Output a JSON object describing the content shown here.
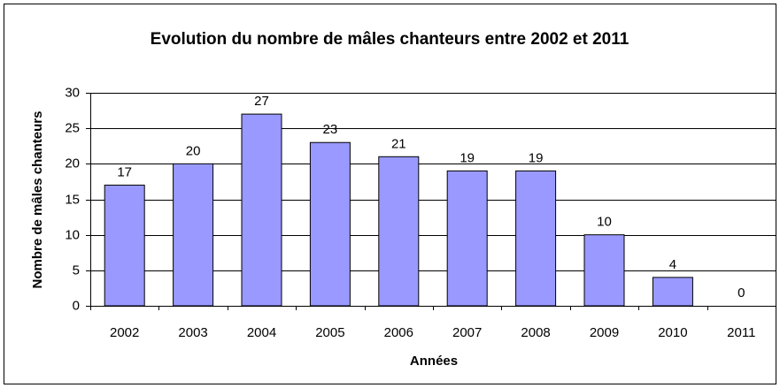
{
  "chart_data": {
    "type": "bar",
    "title": "Evolution du nombre de mâles chanteurs entre 2002 et 2011",
    "x_label": "Années",
    "y_label": "Nombre de mâles chanteurs",
    "categories": [
      "2002",
      "2003",
      "2004",
      "2005",
      "2006",
      "2007",
      "2008",
      "2009",
      "2010",
      "2011"
    ],
    "values": [
      17,
      20,
      27,
      23,
      21,
      19,
      19,
      10,
      4,
      0
    ],
    "color": "#9999ff",
    "ylim": [
      0,
      30
    ],
    "yticks": [
      0,
      5,
      10,
      15,
      20,
      25,
      30
    ],
    "grid": true
  }
}
